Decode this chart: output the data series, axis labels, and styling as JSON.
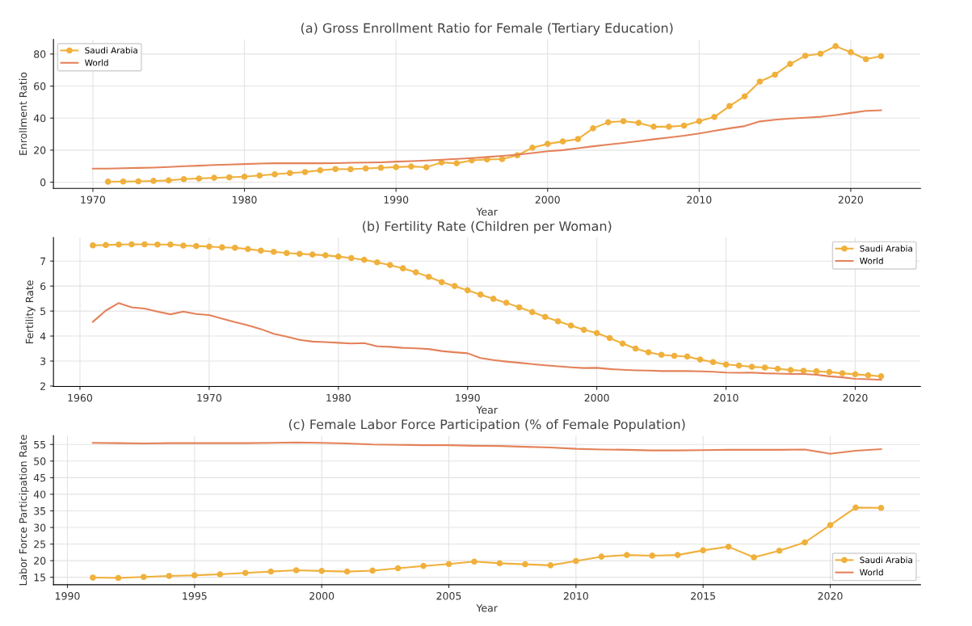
{
  "chart_data": [
    {
      "type": "line",
      "title": "(a) Gross Enrollment Ratio for Female (Tertiary Education)",
      "xlabel": "Year",
      "ylabel": "Enrollment Ratio",
      "xlim": [
        1967.4,
        2024.6
      ],
      "xticks": [
        1970,
        1980,
        1990,
        2000,
        2010,
        2020
      ],
      "ylim": [
        -3.9,
        89.1
      ],
      "yticks": [
        0,
        20,
        40,
        60,
        80
      ],
      "grid": true,
      "legend": "top left",
      "series": [
        {
          "name": "Saudi Arabia",
          "color": "#f0b03c",
          "marker": "circle",
          "x": [
            1971,
            1972,
            1973,
            1974,
            1975,
            1976,
            1977,
            1978,
            1979,
            1980,
            1981,
            1982,
            1983,
            1984,
            1985,
            1986,
            1987,
            1988,
            1989,
            1990,
            1991,
            1992,
            1993,
            1994,
            1995,
            1996,
            1997,
            1998,
            1999,
            2000,
            2001,
            2002,
            2003,
            2004,
            2005,
            2006,
            2007,
            2008,
            2009,
            2010,
            2011,
            2012,
            2013,
            2014,
            2015,
            2016,
            2017,
            2018,
            2019,
            2020,
            2021,
            2022
          ],
          "values": [
            0.3,
            0.4,
            0.5,
            0.8,
            1.1,
            1.9,
            2.3,
            2.7,
            3.0,
            3.4,
            4.2,
            4.9,
            5.7,
            6.3,
            7.4,
            8.2,
            8.1,
            8.6,
            9.0,
            9.4,
            9.8,
            9.3,
            12.3,
            11.8,
            13.6,
            14.2,
            14.4,
            16.8,
            21.5,
            23.9,
            25.4,
            26.9,
            33.6,
            37.4,
            38.1,
            37.0,
            34.6,
            34.6,
            35.3,
            38.1,
            40.7,
            47.5,
            53.6,
            62.8,
            67.1,
            73.8,
            78.9,
            80.2,
            84.9,
            81.1,
            76.8,
            78.7
          ]
        },
        {
          "name": "World",
          "color": "#e4825a",
          "marker": "none",
          "x": [
            1970,
            1971,
            1972,
            1973,
            1974,
            1975,
            1976,
            1977,
            1978,
            1979,
            1980,
            1981,
            1982,
            1983,
            1984,
            1985,
            1986,
            1987,
            1988,
            1989,
            1990,
            1991,
            1992,
            1993,
            1994,
            1995,
            1996,
            1997,
            1998,
            1999,
            2000,
            2001,
            2002,
            2003,
            2004,
            2005,
            2006,
            2007,
            2008,
            2009,
            2010,
            2011,
            2012,
            2013,
            2014,
            2015,
            2016,
            2017,
            2018,
            2019,
            2020,
            2021,
            2022
          ],
          "values": [
            8.5,
            8.5,
            8.7,
            8.9,
            9.1,
            9.5,
            10.0,
            10.3,
            10.7,
            11.0,
            11.3,
            11.6,
            11.8,
            11.8,
            11.8,
            11.8,
            11.9,
            12.1,
            12.2,
            12.4,
            12.8,
            13.1,
            13.5,
            14.0,
            14.5,
            15.0,
            15.7,
            16.4,
            17.2,
            18.2,
            19.3,
            20.0,
            21.2,
            22.4,
            23.5,
            24.5,
            25.6,
            26.8,
            27.9,
            29.0,
            30.4,
            32.0,
            33.6,
            35.0,
            37.9,
            39.0,
            39.7,
            40.2,
            40.8,
            41.9,
            43.2,
            44.5,
            44.9
          ]
        }
      ]
    },
    {
      "type": "line",
      "title": "(b) Fertility Rate (Children per Woman)",
      "xlabel": "Year",
      "ylabel": "Fertility Rate",
      "xlim": [
        1957.95,
        2025.05
      ],
      "xticks": [
        1960,
        1970,
        1980,
        1990,
        2000,
        2010,
        2020
      ],
      "ylim": [
        1.98,
        7.94
      ],
      "yticks": [
        2,
        3,
        4,
        5,
        6,
        7
      ],
      "grid": true,
      "legend": "top right",
      "series": [
        {
          "name": "Saudi Arabia",
          "color": "#f0b03c",
          "marker": "circle",
          "x": [
            1961,
            1962,
            1963,
            1964,
            1965,
            1966,
            1967,
            1968,
            1969,
            1970,
            1971,
            1972,
            1973,
            1974,
            1975,
            1976,
            1977,
            1978,
            1979,
            1980,
            1981,
            1982,
            1983,
            1984,
            1985,
            1986,
            1987,
            1988,
            1989,
            1990,
            1991,
            1992,
            1993,
            1994,
            1995,
            1996,
            1997,
            1998,
            1999,
            2000,
            2001,
            2002,
            2003,
            2004,
            2005,
            2006,
            2007,
            2008,
            2009,
            2010,
            2011,
            2012,
            2013,
            2014,
            2015,
            2016,
            2017,
            2018,
            2019,
            2020,
            2021,
            2022
          ],
          "values": [
            7.63,
            7.64,
            7.66,
            7.67,
            7.67,
            7.66,
            7.66,
            7.62,
            7.6,
            7.58,
            7.55,
            7.53,
            7.48,
            7.42,
            7.37,
            7.32,
            7.29,
            7.26,
            7.23,
            7.18,
            7.12,
            7.05,
            6.95,
            6.84,
            6.71,
            6.55,
            6.37,
            6.16,
            6.0,
            5.83,
            5.66,
            5.49,
            5.33,
            5.15,
            4.96,
            4.77,
            4.59,
            4.42,
            4.25,
            4.12,
            3.92,
            3.7,
            3.5,
            3.35,
            3.25,
            3.21,
            3.18,
            3.06,
            2.96,
            2.86,
            2.82,
            2.77,
            2.74,
            2.69,
            2.64,
            2.61,
            2.59,
            2.56,
            2.51,
            2.47,
            2.43,
            2.39
          ]
        },
        {
          "name": "World",
          "color": "#e4825a",
          "marker": "none",
          "x": [
            1961,
            1962,
            1963,
            1964,
            1965,
            1966,
            1967,
            1968,
            1969,
            1970,
            1971,
            1972,
            1973,
            1974,
            1975,
            1976,
            1977,
            1978,
            1979,
            1980,
            1981,
            1982,
            1983,
            1984,
            1985,
            1986,
            1987,
            1988,
            1989,
            1990,
            1991,
            1992,
            1993,
            1994,
            1995,
            1996,
            1997,
            1998,
            1999,
            2000,
            2001,
            2002,
            2003,
            2004,
            2005,
            2006,
            2007,
            2008,
            2009,
            2010,
            2011,
            2012,
            2013,
            2014,
            2015,
            2016,
            2017,
            2018,
            2019,
            2020,
            2021,
            2022
          ],
          "values": [
            4.57,
            5.02,
            5.32,
            5.15,
            5.1,
            4.98,
            4.87,
            4.98,
            4.88,
            4.84,
            4.7,
            4.56,
            4.43,
            4.28,
            4.09,
            3.98,
            3.85,
            3.78,
            3.76,
            3.73,
            3.7,
            3.72,
            3.59,
            3.57,
            3.53,
            3.51,
            3.48,
            3.4,
            3.35,
            3.31,
            3.12,
            3.04,
            2.98,
            2.93,
            2.88,
            2.83,
            2.79,
            2.75,
            2.72,
            2.73,
            2.68,
            2.65,
            2.63,
            2.62,
            2.6,
            2.6,
            2.6,
            2.59,
            2.57,
            2.54,
            2.53,
            2.54,
            2.51,
            2.5,
            2.48,
            2.48,
            2.45,
            2.39,
            2.35,
            2.29,
            2.27,
            2.25
          ]
        }
      ]
    },
    {
      "type": "line",
      "title": "(c) Female Labor Force Participation (% of Female Population)",
      "xlabel": "Year",
      "ylabel": "Labor Force Participation Rate",
      "xlim": [
        1989.45,
        2023.55
      ],
      "xticks": [
        1990,
        1995,
        2000,
        2005,
        2010,
        2015,
        2020
      ],
      "ylim": [
        12.76,
        57.64
      ],
      "yticks": [
        15,
        20,
        25,
        30,
        35,
        40,
        45,
        50,
        55
      ],
      "grid": true,
      "legend": "bottom right",
      "series": [
        {
          "name": "Saudi Arabia",
          "color": "#f0b03c",
          "marker": "circle",
          "x": [
            1991,
            1992,
            1993,
            1994,
            1995,
            1996,
            1997,
            1998,
            1999,
            2000,
            2001,
            2002,
            2003,
            2004,
            2005,
            2006,
            2007,
            2008,
            2009,
            2010,
            2011,
            2012,
            2013,
            2014,
            2015,
            2016,
            2017,
            2018,
            2019,
            2020,
            2021,
            2022
          ],
          "values": [
            14.9,
            14.8,
            15.1,
            15.4,
            15.6,
            15.9,
            16.3,
            16.7,
            17.1,
            16.9,
            16.7,
            17.0,
            17.7,
            18.4,
            19.0,
            19.7,
            19.2,
            18.9,
            18.6,
            19.9,
            21.2,
            21.7,
            21.5,
            21.7,
            23.1,
            24.2,
            21.0,
            23.0,
            25.5,
            30.7,
            36.0,
            35.9
          ]
        },
        {
          "name": "World",
          "color": "#e4825a",
          "marker": "none",
          "x": [
            1991,
            1992,
            1993,
            1994,
            1995,
            1996,
            1997,
            1998,
            1999,
            2000,
            2001,
            2002,
            2003,
            2004,
            2005,
            2006,
            2007,
            2008,
            2009,
            2010,
            2011,
            2012,
            2013,
            2014,
            2015,
            2016,
            2017,
            2018,
            2019,
            2020,
            2021,
            2022
          ],
          "values": [
            55.5,
            55.4,
            55.3,
            55.4,
            55.4,
            55.4,
            55.4,
            55.5,
            55.6,
            55.5,
            55.3,
            55.0,
            54.9,
            54.8,
            54.8,
            54.6,
            54.55,
            54.3,
            54.1,
            53.7,
            53.5,
            53.4,
            53.2,
            53.2,
            53.3,
            53.4,
            53.4,
            53.4,
            53.5,
            52.2,
            53.1,
            53.6
          ]
        }
      ]
    }
  ]
}
